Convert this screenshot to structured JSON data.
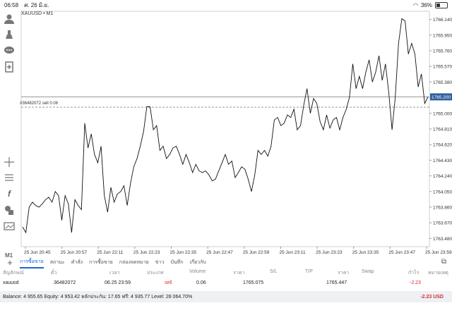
{
  "status_bar": {
    "time": "06:58",
    "date": "ศ. 26 มิ.ย.",
    "battery": "36%"
  },
  "toolbar": {
    "icons": [
      "person-icon",
      "hand-icon",
      "chat-icon",
      "add-page-icon",
      "crosshair-icon",
      "lines-icon",
      "function-icon",
      "shapes-icon",
      "chart-type-icon"
    ],
    "timeframe": "M1"
  },
  "chart": {
    "symbol_label": "XAUUSD • M1",
    "order_label": "#36482072 sell 0.06",
    "current_price_label": "1765.200",
    "price_tag_color": "#2f5f9e"
  },
  "chart_data": {
    "type": "line",
    "y_ticks": [
      "1766.140",
      "1765.950",
      "1765.760",
      "1765.570",
      "1765.380",
      "1765.000",
      "1764.810",
      "1764.620",
      "1764.430",
      "1764.240",
      "1764.050",
      "1763.860",
      "1763.670",
      "1763.480"
    ],
    "ylim": [
      1763.38,
      1766.24
    ],
    "x_ticks": [
      "25 Jun 20:45",
      "25 Jun 20:57",
      "25 Jun 22:11",
      "25 Jun 22:23",
      "25 Jun 22:35",
      "25 Jun 22:47",
      "25 Jun 22:59",
      "25 Jun 23:11",
      "25 Jun 23:23",
      "25 Jun 23:35",
      "25 Jun 23:47",
      "25 Jun 23:59"
    ],
    "current_price": 1765.2,
    "order_price": 1765.075,
    "values": [
      1763.62,
      1763.55,
      1763.86,
      1763.92,
      1763.88,
      1763.86,
      1763.9,
      1763.95,
      1763.98,
      1763.92,
      1764.05,
      1764.0,
      1763.7,
      1764.0,
      1763.9,
      1763.55,
      1763.95,
      1763.88,
      1763.83,
      1764.88,
      1764.58,
      1764.75,
      1764.5,
      1764.4,
      1764.6,
      1764.0,
      1763.8,
      1764.1,
      1763.92,
      1764.02,
      1764.05,
      1764.12,
      1763.88,
      1764.15,
      1764.35,
      1764.45,
      1764.6,
      1764.78,
      1765.08,
      1765.08,
      1764.8,
      1764.85,
      1764.55,
      1764.6,
      1764.45,
      1764.5,
      1764.58,
      1764.6,
      1764.5,
      1764.38,
      1764.5,
      1764.4,
      1764.28,
      1764.38,
      1764.3,
      1764.28,
      1764.3,
      1764.25,
      1764.18,
      1764.2,
      1764.3,
      1764.4,
      1764.5,
      1764.38,
      1764.42,
      1764.22,
      1764.28,
      1764.35,
      1764.32,
      1764.2,
      1764.05,
      1764.25,
      1764.55,
      1764.5,
      1764.55,
      1764.48,
      1764.6,
      1764.92,
      1764.95,
      1764.85,
      1764.88,
      1764.98,
      1764.95,
      1765.05,
      1764.8,
      1764.85,
      1765.1,
      1765.3,
      1765.0,
      1765.18,
      1765.12,
      1764.9,
      1764.8,
      1764.98,
      1764.82,
      1764.92,
      1764.95,
      1764.8,
      1764.95,
      1765.05,
      1765.2,
      1765.6,
      1765.3,
      1765.45,
      1765.3,
      1765.5,
      1765.65,
      1765.38,
      1765.5,
      1765.7,
      1765.4,
      1765.6,
      1765.25,
      1764.8,
      1765.2,
      1765.85,
      1766.15,
      1766.12,
      1765.72,
      1765.85,
      1765.72,
      1765.32,
      1765.48,
      1765.12,
      1765.2
    ]
  },
  "terminal": {
    "tabs": [
      "การซื้อขาย",
      "สถานะ",
      "คำสั่ง",
      "การซื้อขาย",
      "กล่องจดหมาย",
      "ข่าว",
      "บันทึก",
      "เกี่ยวกับ"
    ],
    "active_tab": 0,
    "headers": [
      "สัญลักษณ์",
      "ตั๋ว",
      "เวลา",
      "ประเภท",
      "Volume",
      "ราคา",
      "S/L",
      "T/P",
      "ราคา",
      "Swap",
      "กำไร",
      "หมายเหตุ"
    ],
    "row": [
      "xauusd",
      "36482072",
      "06.25 23:59",
      "sell",
      "0.06",
      "1765.075",
      "",
      "",
      "1765.447",
      "",
      "-2.23",
      ""
    ],
    "balance_text": "Balance: 4 955.65 Equity: 4 953.42 หลักประกัน: 17.65 ฟรี: 4 935.77 Level: 28 064.70%",
    "profit_total": "-2.23 USD"
  }
}
